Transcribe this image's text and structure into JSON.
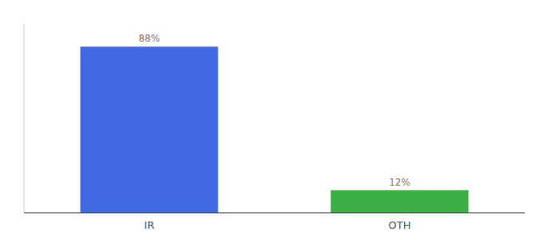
{
  "chart_data": {
    "type": "bar",
    "categories": [
      "IR",
      "OTH"
    ],
    "values": [
      88,
      12
    ],
    "value_labels": [
      "88%",
      "12%"
    ],
    "colors": [
      "#4169e1",
      "#3cb043"
    ],
    "ylim": [
      0,
      100
    ],
    "data_labels": true,
    "tick_labels": "x",
    "grid": false
  }
}
